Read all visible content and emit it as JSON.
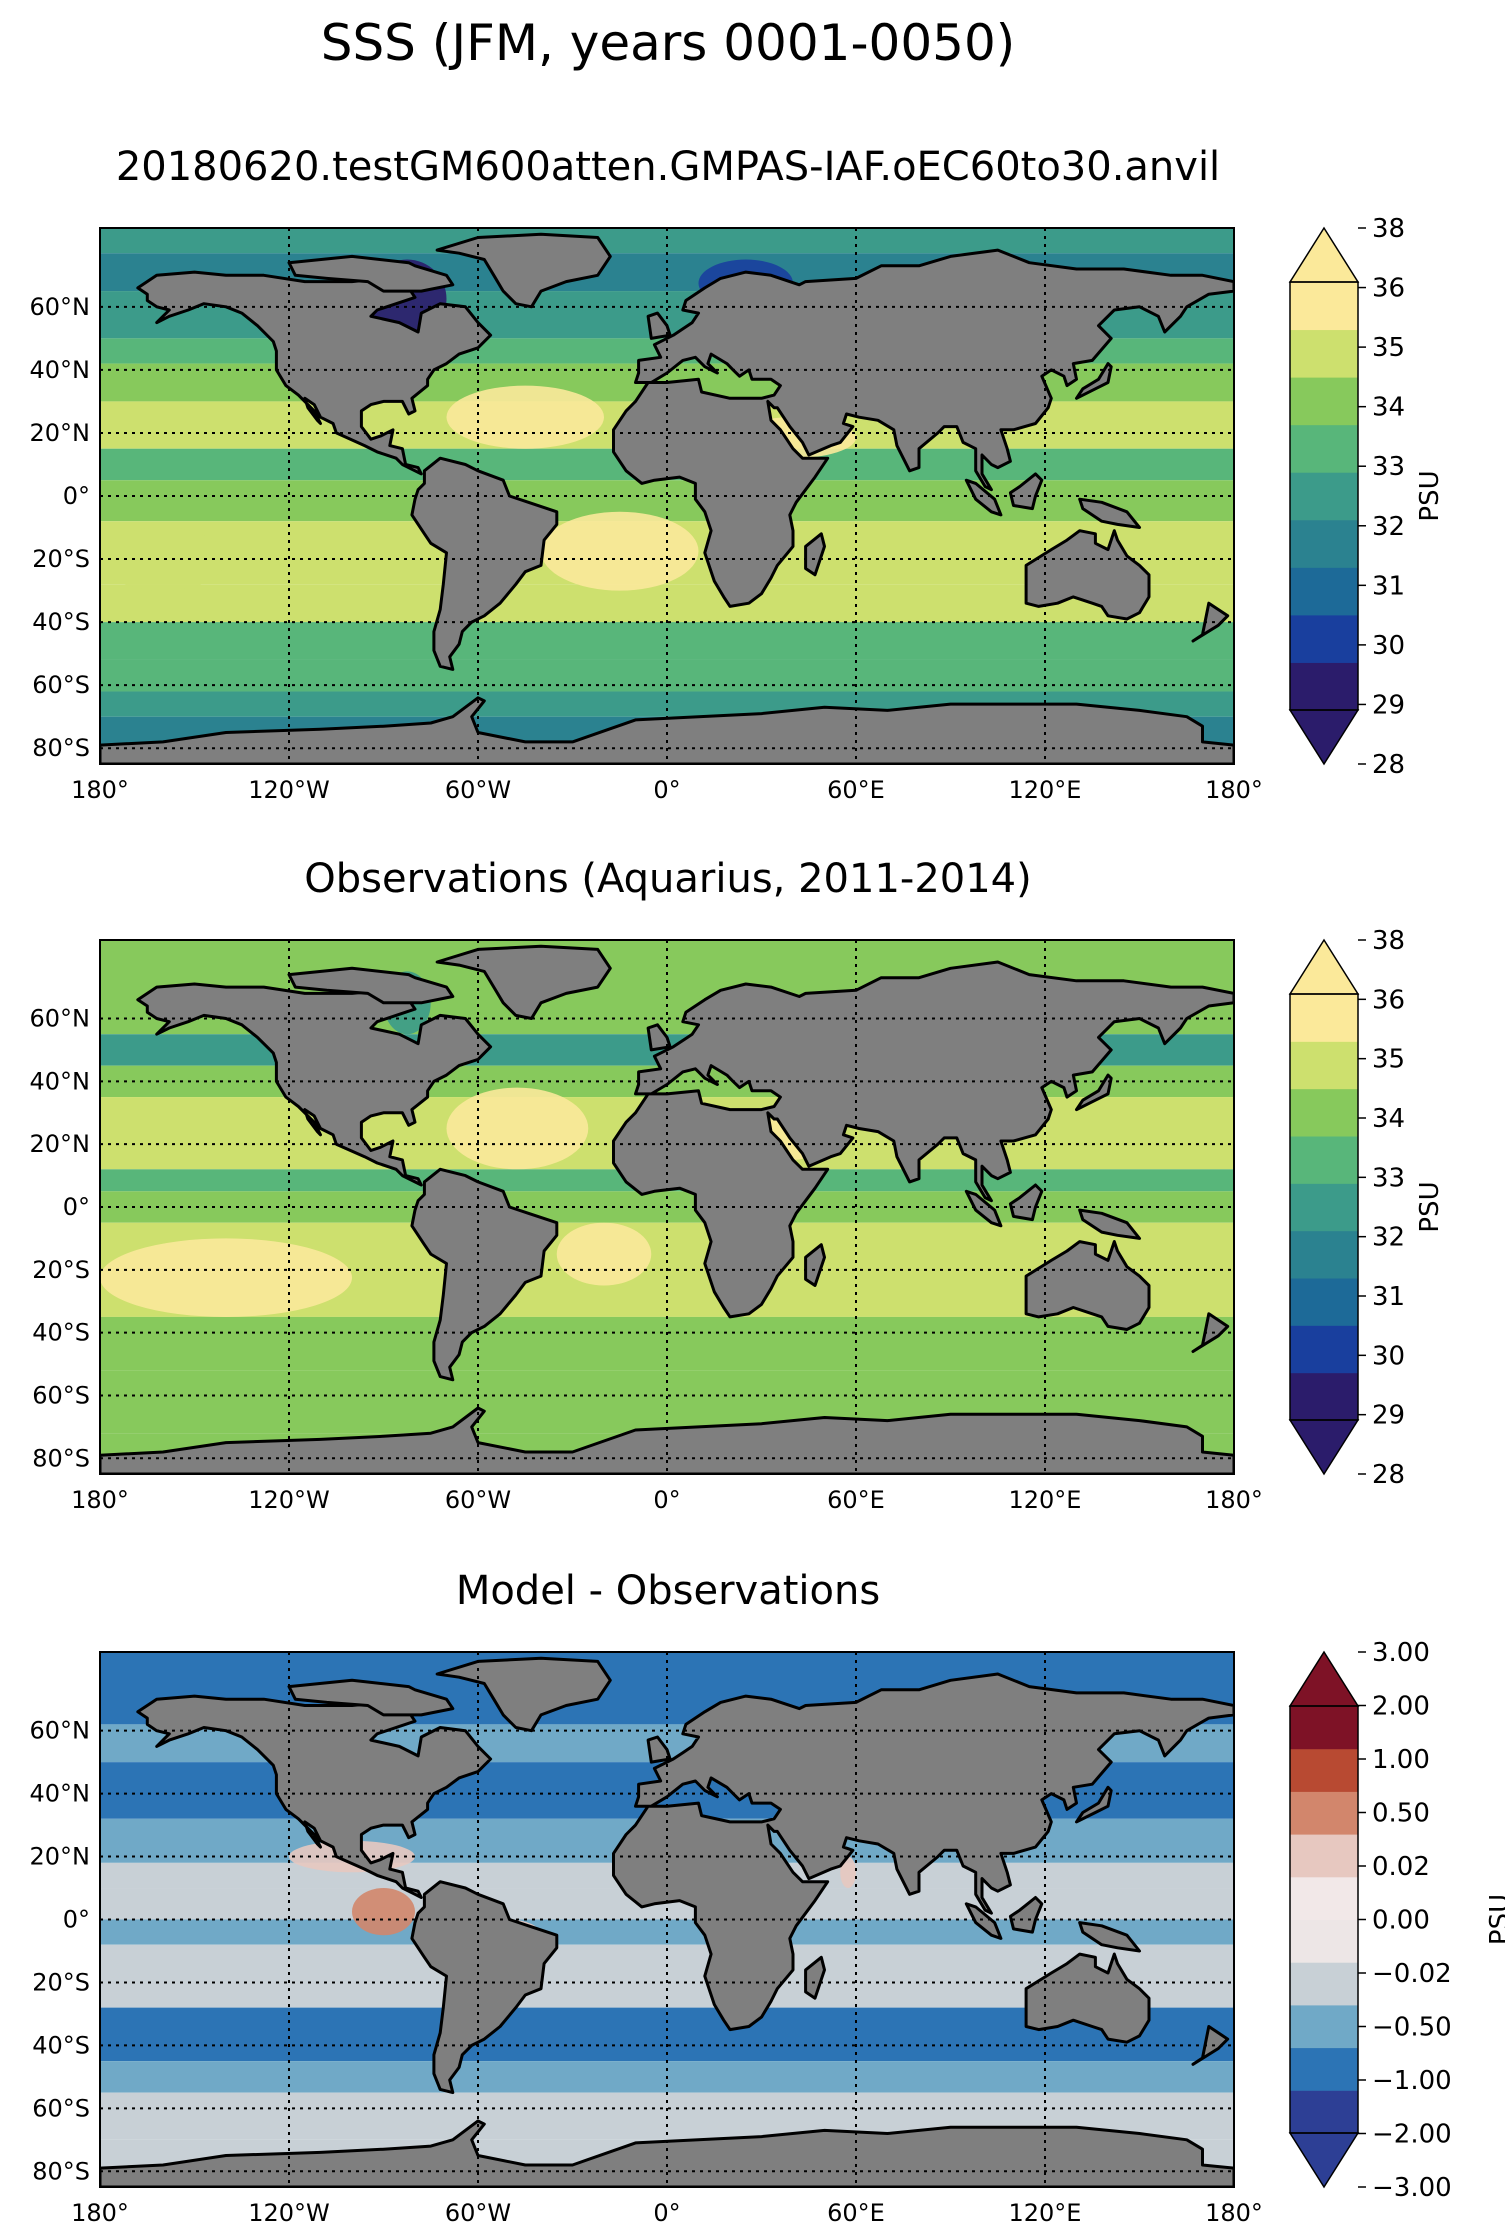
{
  "figure_title": "SSS (JFM, years 0001-0050)",
  "chart_data": [
    {
      "type": "heatmap",
      "title": "20180620.testGM600atten.GMPAS-IAF.oEC60to30.anvil",
      "projection": "PlateCarree",
      "xlim": [
        -180,
        180
      ],
      "ylim": [
        -85,
        85
      ],
      "x_ticks": [
        -180,
        -120,
        -60,
        0,
        60,
        120,
        180
      ],
      "x_tick_labels": [
        "180°",
        "120°W",
        "60°W",
        "0°",
        "60°E",
        "120°E",
        "180°"
      ],
      "y_ticks": [
        60,
        40,
        20,
        0,
        -20,
        -40,
        -60,
        -80
      ],
      "y_tick_labels": [
        "60°N",
        "40°N",
        "20°N",
        "0°",
        "20°S",
        "40°S",
        "60°S",
        "80°S"
      ],
      "grid": true,
      "land_color": "#7f7f7f",
      "colorbar": {
        "label": "PSU",
        "extend": "both",
        "levels": [
          28,
          29,
          30,
          31,
          32,
          33,
          34,
          35,
          36,
          38
        ],
        "tick_labels": [
          "28",
          "29",
          "30",
          "31",
          "32",
          "33",
          "34",
          "35",
          "36",
          "38"
        ],
        "colors": [
          "#2b1c6b",
          "#193f9e",
          "#1d6a98",
          "#2b8290",
          "#3c9b8a",
          "#58b67a",
          "#87c95c",
          "#cde06e",
          "#fbe99a"
        ]
      }
    },
    {
      "type": "heatmap",
      "title": "Observations (Aquarius, 2011-2014)",
      "projection": "PlateCarree",
      "xlim": [
        -180,
        180
      ],
      "ylim": [
        -85,
        85
      ],
      "x_ticks": [
        -180,
        -120,
        -60,
        0,
        60,
        120,
        180
      ],
      "x_tick_labels": [
        "180°",
        "120°W",
        "60°W",
        "0°",
        "60°E",
        "120°E",
        "180°"
      ],
      "y_ticks": [
        60,
        40,
        20,
        0,
        -20,
        -40,
        -60,
        -80
      ],
      "y_tick_labels": [
        "60°N",
        "40°N",
        "20°N",
        "0°",
        "20°S",
        "40°S",
        "60°S",
        "80°S"
      ],
      "grid": true,
      "land_color": "#7f7f7f",
      "colorbar": {
        "label": "PSU",
        "extend": "both",
        "levels": [
          28,
          29,
          30,
          31,
          32,
          33,
          34,
          35,
          36,
          38
        ],
        "tick_labels": [
          "28",
          "29",
          "30",
          "31",
          "32",
          "33",
          "34",
          "35",
          "36",
          "38"
        ],
        "colors": [
          "#2b1c6b",
          "#193f9e",
          "#1d6a98",
          "#2b8290",
          "#3c9b8a",
          "#58b67a",
          "#87c95c",
          "#cde06e",
          "#fbe99a"
        ]
      }
    },
    {
      "type": "heatmap",
      "title": "Model - Observations",
      "projection": "PlateCarree",
      "xlim": [
        -180,
        180
      ],
      "ylim": [
        -85,
        85
      ],
      "x_ticks": [
        -180,
        -120,
        -60,
        0,
        60,
        120,
        180
      ],
      "x_tick_labels": [
        "180°",
        "120°W",
        "60°W",
        "0°",
        "60°E",
        "120°E",
        "180°"
      ],
      "y_ticks": [
        60,
        40,
        20,
        0,
        -20,
        -40,
        -60,
        -80
      ],
      "y_tick_labels": [
        "60°N",
        "40°N",
        "20°N",
        "0°",
        "20°S",
        "40°S",
        "60°S",
        "80°S"
      ],
      "grid": true,
      "land_color": "#7f7f7f",
      "colorbar": {
        "label": "PSU",
        "extend": "both",
        "levels": [
          -3.0,
          -2.0,
          -1.0,
          -0.5,
          -0.02,
          0.0,
          0.02,
          0.5,
          1.0,
          2.0,
          3.0
        ],
        "tick_labels": [
          "−3.00",
          "−2.00",
          "−1.00",
          "−0.50",
          "−0.02",
          "0.00",
          "0.02",
          "0.50",
          "1.00",
          "2.00",
          "3.00"
        ],
        "colors": [
          "#2d3f95",
          "#2c74b5",
          "#70a9c7",
          "#c8d0d6",
          "#ede6e6",
          "#f2e8e8",
          "#e7c8c0",
          "#d2866c",
          "#b84a32",
          "#7e1226"
        ]
      }
    }
  ]
}
